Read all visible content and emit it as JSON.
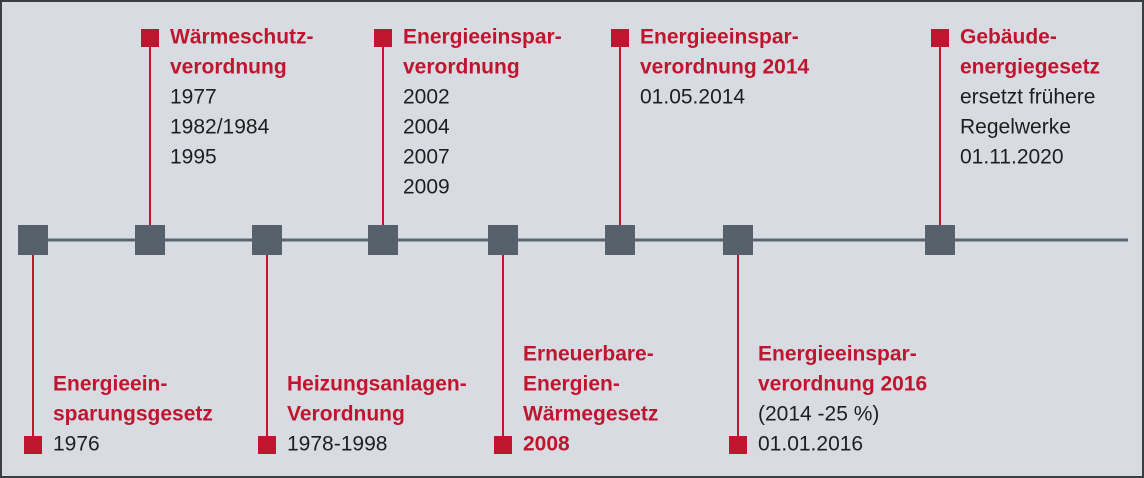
{
  "timeline": {
    "top": [
      {
        "title": [
          "Wärmeschutz-",
          "verordnung"
        ],
        "details": [
          "1977",
          "1982/1984",
          "1995"
        ]
      },
      {
        "title": [
          "Energieeinspar-",
          "verordnung"
        ],
        "details": [
          "2002",
          "2004",
          "2007",
          "2009"
        ]
      },
      {
        "title": [
          "Energieeinspar-",
          "verordnung 2014"
        ],
        "details": [
          "01.05.2014"
        ]
      },
      {
        "title": [
          "Gebäude-",
          "energiegesetz"
        ],
        "details": [
          "ersetzt frühere",
          "Regelwerke",
          "01.11.2020"
        ]
      }
    ],
    "bottom": [
      {
        "title": [
          "Energieein-",
          "sparungsgesetz"
        ],
        "details": [
          "1976"
        ]
      },
      {
        "title": [
          "Heizungsanlagen-",
          "Verordnung"
        ],
        "details": [
          "1978-1998"
        ]
      },
      {
        "title": [
          "Erneuerbare-",
          "Energien-",
          "Wärmegesetz",
          "2008"
        ],
        "details": []
      },
      {
        "title": [
          "Energieeinspar-",
          "verordnung 2016"
        ],
        "details": [
          "(2014 -25 %)",
          "01.01.2016"
        ]
      }
    ]
  }
}
